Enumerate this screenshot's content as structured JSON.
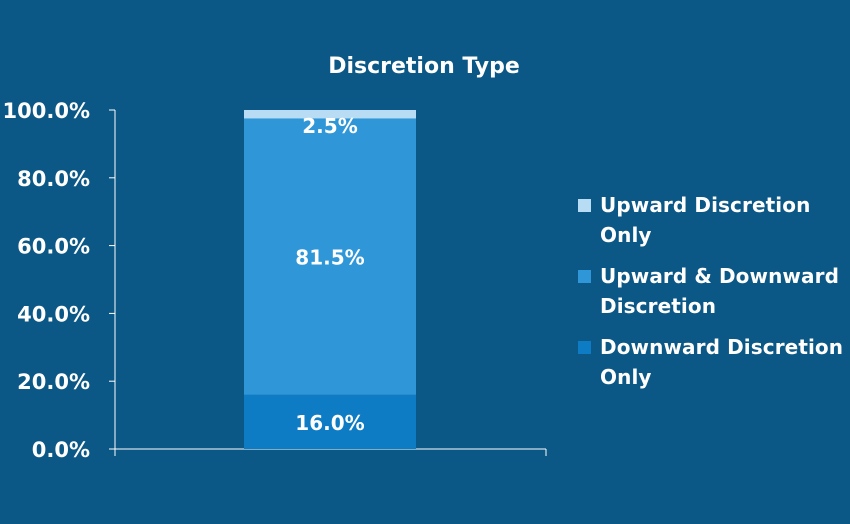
{
  "chart_data": {
    "type": "bar",
    "stacked": true,
    "title": "Discretion Type",
    "categories": [
      ""
    ],
    "series": [
      {
        "name": "Downward Discretion Only",
        "values": [
          16.0
        ],
        "label": "16.0%",
        "color": "#0e7cc4"
      },
      {
        "name": "Upward & Downward Discretion",
        "values": [
          81.5
        ],
        "label": "81.5%",
        "color": "#2f97d8"
      },
      {
        "name": "Upward Discretion Only",
        "values": [
          2.5
        ],
        "label": "2.5%",
        "color": "#b7dcf3"
      }
    ],
    "ylim": [
      0,
      100
    ],
    "yticks": [
      0,
      20,
      40,
      60,
      80,
      100
    ],
    "ytick_labels": [
      "0.0%",
      "20.0%",
      "40.0%",
      "60.0%",
      "80.0%",
      "100.0%"
    ],
    "xlabel": "",
    "ylabel": "",
    "grid": false,
    "legend_position": "right",
    "legend": [
      {
        "name": "Upward Discretion Only",
        "color": "#b7dcf3"
      },
      {
        "name": "Upward & Downward Discretion",
        "color": "#2f97d8"
      },
      {
        "name": "Downward Discretion Only",
        "color": "#0e7cc4"
      }
    ],
    "background_color": "#0b5785",
    "text_color": "#ffffff",
    "axis_color": "#ffffff"
  }
}
